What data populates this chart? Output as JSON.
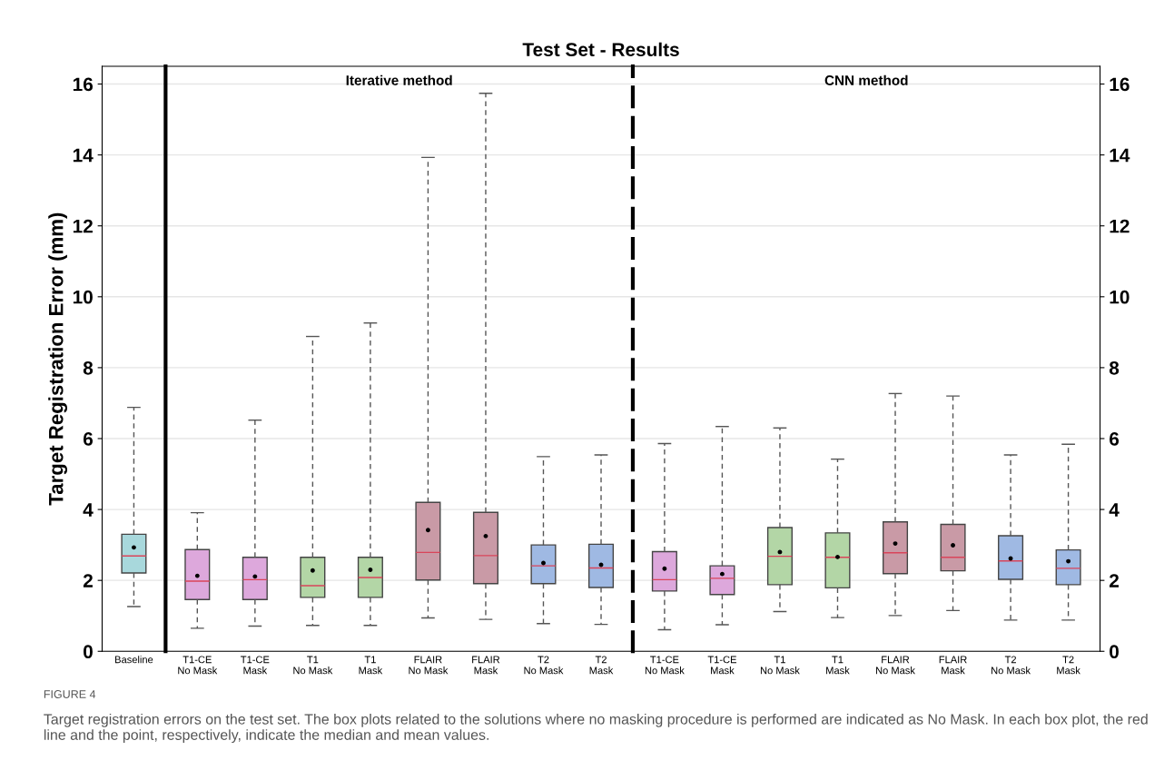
{
  "chart_data": [
    {
      "type": "box",
      "ylabel": "Target Registration Error (mm)",
      "categories": [
        "Baseline"
      ],
      "colors": [
        "#a8d8dc"
      ],
      "boxes": [
        {
          "low": 1.26,
          "q1": 2.21,
          "median": 2.69,
          "q3": 3.3,
          "high": 6.88,
          "mean": 2.93
        }
      ],
      "ylim": [
        0,
        16.5
      ],
      "yticks": [
        0,
        2,
        4,
        6,
        8,
        10,
        12,
        14,
        16
      ],
      "grid": "y"
    },
    {
      "type": "box",
      "title": "Iterative method",
      "categories": [
        "T1-CE\nNo Mask",
        "T1-CE\nMask",
        "T1\nNo Mask",
        "T1\nMask",
        "FLAIR\nNo Mask",
        "FLAIR\nMask",
        "T2\nNo Mask",
        "T2\nMask"
      ],
      "colors": [
        "#dda8dc",
        "#dda8dc",
        "#b3d6a6",
        "#b3d6a6",
        "#c99aa6",
        "#c99aa6",
        "#9fb9e3",
        "#9fb9e3"
      ],
      "boxes": [
        {
          "low": 0.65,
          "q1": 1.46,
          "median": 1.98,
          "q3": 2.87,
          "high": 3.91,
          "mean": 2.13
        },
        {
          "low": 0.71,
          "q1": 1.46,
          "median": 2.02,
          "q3": 2.65,
          "high": 6.52,
          "mean": 2.11
        },
        {
          "low": 0.73,
          "q1": 1.52,
          "median": 1.85,
          "q3": 2.65,
          "high": 8.88,
          "mean": 2.28
        },
        {
          "low": 0.73,
          "q1": 1.52,
          "median": 2.08,
          "q3": 2.65,
          "high": 9.26,
          "mean": 2.3
        },
        {
          "low": 0.94,
          "q1": 2.01,
          "median": 2.79,
          "q3": 4.2,
          "high": 13.93,
          "mean": 3.42
        },
        {
          "low": 0.9,
          "q1": 1.91,
          "median": 2.7,
          "q3": 3.92,
          "high": 15.74,
          "mean": 3.25
        },
        {
          "low": 0.78,
          "q1": 1.91,
          "median": 2.41,
          "q3": 3.0,
          "high": 5.49,
          "mean": 2.49
        },
        {
          "low": 0.76,
          "q1": 1.8,
          "median": 2.35,
          "q3": 3.02,
          "high": 5.54,
          "mean": 2.44
        }
      ],
      "ylim": [
        0,
        16.5
      ],
      "tick_labels": "x",
      "grid": "y",
      "annotations": [
        "Test Set - Results"
      ]
    },
    {
      "type": "box",
      "title": "CNN method",
      "categories": [
        "T1-CE\nNo Mask",
        "T1-CE\nMask",
        "T1\nNo Mask",
        "T1\nMask",
        "FLAIR\nNo Mask",
        "FLAIR\nMask",
        "T2\nNo Mask",
        "T2\nMask"
      ],
      "colors": [
        "#dda8dc",
        "#dda8dc",
        "#b3d6a6",
        "#b3d6a6",
        "#c99aa6",
        "#c99aa6",
        "#9fb9e3",
        "#9fb9e3"
      ],
      "boxes": [
        {
          "low": 0.61,
          "q1": 1.7,
          "median": 2.02,
          "q3": 2.81,
          "high": 5.86,
          "mean": 2.33
        },
        {
          "low": 0.75,
          "q1": 1.6,
          "median": 2.06,
          "q3": 2.41,
          "high": 6.34,
          "mean": 2.18
        },
        {
          "low": 1.12,
          "q1": 1.88,
          "median": 2.68,
          "q3": 3.49,
          "high": 6.3,
          "mean": 2.8
        },
        {
          "low": 0.95,
          "q1": 1.79,
          "median": 2.65,
          "q3": 3.34,
          "high": 5.42,
          "mean": 2.66
        },
        {
          "low": 1.01,
          "q1": 2.19,
          "median": 2.78,
          "q3": 3.65,
          "high": 7.27,
          "mean": 3.04
        },
        {
          "low": 1.15,
          "q1": 2.27,
          "median": 2.65,
          "q3": 3.58,
          "high": 7.2,
          "mean": 2.99
        },
        {
          "low": 0.88,
          "q1": 2.03,
          "median": 2.55,
          "q3": 3.26,
          "high": 5.54,
          "mean": 2.62
        },
        {
          "low": 0.88,
          "q1": 1.88,
          "median": 2.34,
          "q3": 2.86,
          "high": 5.84,
          "mean": 2.54
        }
      ],
      "ylim": [
        0,
        16.5
      ],
      "yticks": [
        0,
        2,
        4,
        6,
        8,
        10,
        12,
        14,
        16
      ],
      "grid": "y",
      "annotations": [
        "FIGURE 4",
        "Target registration errors on the test set. The box plots related to the solutions where no masking procedure is performed are indicated as No Mask. In each box plot, the red line and the point, respectively, indicate the median and mean values."
      ]
    }
  ]
}
